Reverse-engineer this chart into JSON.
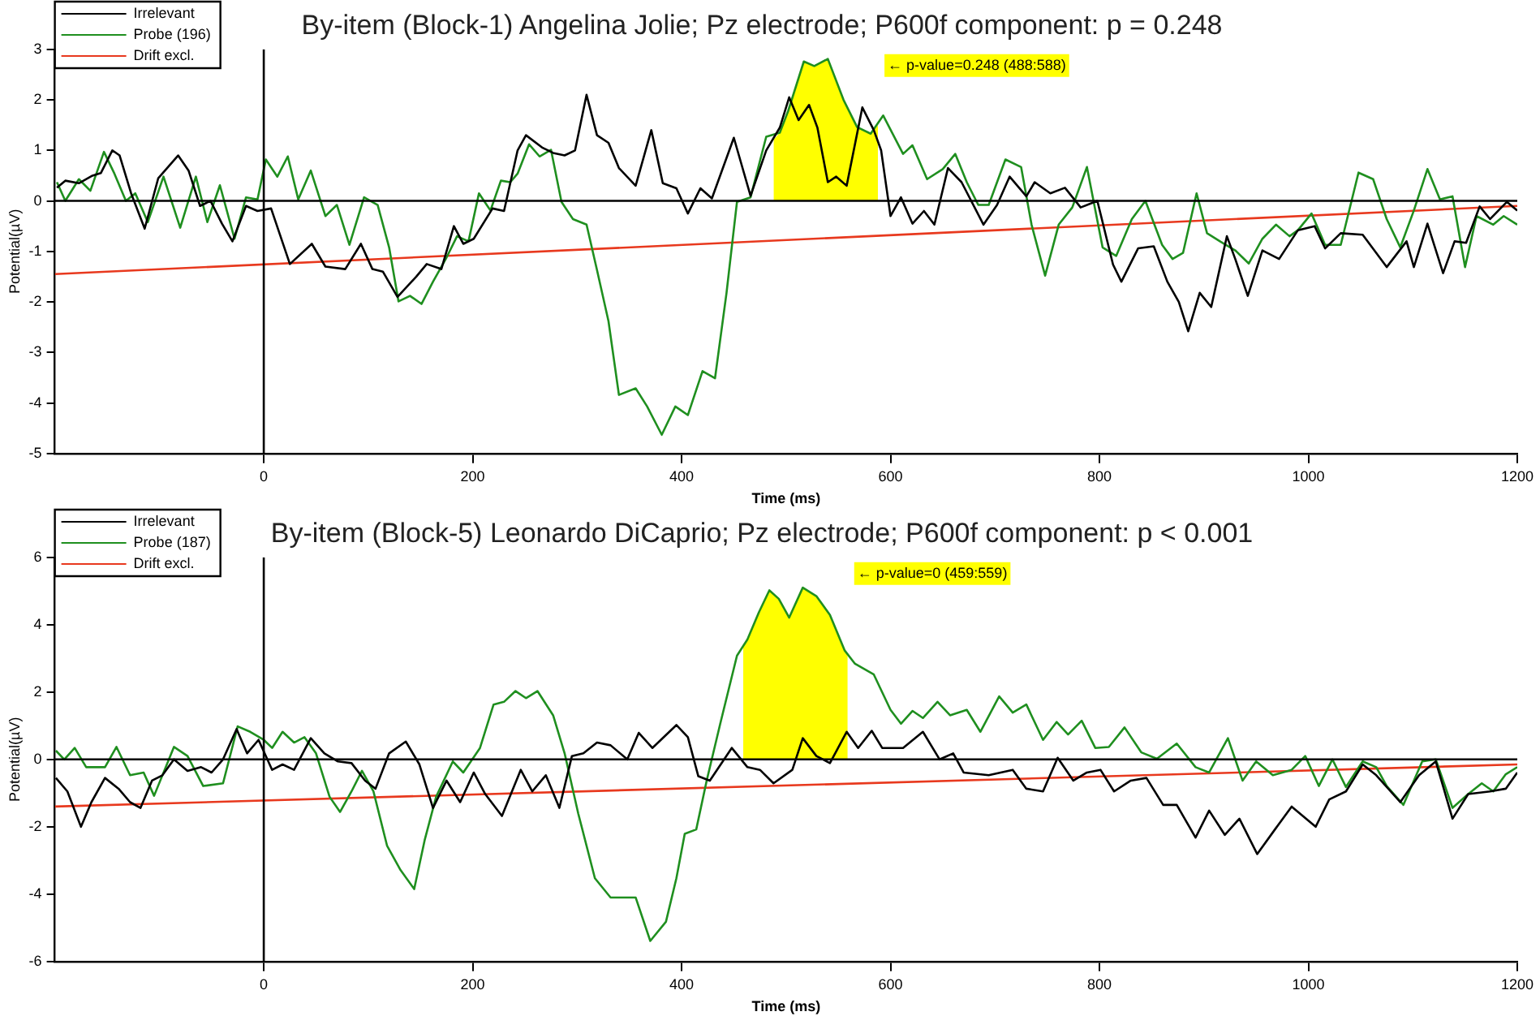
{
  "chart_data": [
    {
      "type": "line",
      "title": "By-item (Block-1) Angelina Jolie; Pz electrode; P600f component: p = 0.248",
      "xlabel": "Time (ms)",
      "ylabel": "Potential(µV)",
      "xlim": [
        -200,
        1200
      ],
      "xticks": [
        0,
        200,
        400,
        600,
        800,
        1000,
        1200
      ],
      "ylim": [
        -5,
        3
      ],
      "yticks": [
        -5,
        -4,
        -3,
        -2,
        -1,
        0,
        1,
        2,
        3
      ],
      "grid": false,
      "legend": "top left",
      "annotations": [
        "← p-value=0.248 (488:588)"
      ],
      "series": [
        {
          "color": "#000000",
          "x": [
            -200,
            1200
          ],
          "values": [
            0,
            0
          ]
        },
        {
          "color": "#000000",
          "x": [
            0,
            0
          ],
          "values": [
            -5,
            3
          ]
        },
        {
          "type": "area",
          "color": "#ffff00",
          "x": [
            488,
            494,
            502,
            517,
            527,
            540,
            555,
            568,
            581,
            588
          ],
          "values": [
            1.21,
            1.35,
            1.78,
            2.76,
            2.67,
            2.81,
            2,
            1.46,
            1.33,
            1.5
          ]
        },
        {
          "name": "Irrelevant",
          "color": "#000000",
          "x": [
            -198,
            -190,
            -177,
            -164,
            -156,
            -145,
            -138,
            -127,
            -114,
            -101,
            -82,
            -72,
            -61,
            -51,
            -40,
            -30,
            -17,
            -6,
            7,
            25,
            46,
            59,
            78,
            93,
            104,
            114,
            128,
            146,
            156,
            170,
            182,
            191,
            201,
            219,
            230,
            243,
            251,
            267,
            277,
            288,
            298,
            309,
            319,
            330,
            340,
            356,
            371,
            382,
            395,
            406,
            418,
            429,
            450,
            466,
            481,
            494,
            503,
            512,
            522,
            530,
            540,
            548,
            558,
            573,
            584,
            591,
            600,
            610,
            621,
            632,
            642,
            655,
            668,
            689,
            702,
            714,
            730,
            738,
            753,
            767,
            782,
            798,
            813,
            821,
            837,
            852,
            865,
            876,
            885,
            896,
            907,
            922,
            930,
            942,
            956,
            972,
            990,
            1006,
            1016,
            1031,
            1052,
            1075,
            1094,
            1101,
            1114,
            1129,
            1140,
            1151,
            1164,
            1174,
            1190,
            1200
          ],
          "values": [
            0.26,
            0.4,
            0.35,
            0.5,
            0.55,
            1,
            0.9,
            0.15,
            -0.55,
            0.45,
            0.9,
            0.6,
            -0.1,
            0,
            -0.45,
            -0.8,
            -0.1,
            -0.2,
            -0.15,
            -1.25,
            -0.85,
            -1.3,
            -1.35,
            -0.85,
            -1.35,
            -1.4,
            -1.9,
            -1.5,
            -1.25,
            -1.35,
            -0.5,
            -0.85,
            -0.75,
            -0.15,
            -0.2,
            1,
            1.3,
            1.05,
            0.95,
            0.9,
            1,
            2.1,
            1.3,
            1.15,
            0.65,
            0.3,
            1.4,
            0.35,
            0.25,
            -0.25,
            0.25,
            0.05,
            1.25,
            0.1,
            1,
            1.45,
            2.05,
            1.6,
            1.9,
            1.45,
            0.37,
            0.48,
            0.3,
            1.85,
            1.4,
            1,
            -0.3,
            0.07,
            -0.45,
            -0.2,
            -0.47,
            0.65,
            0.37,
            -0.47,
            -0.08,
            0.48,
            0.09,
            0.37,
            0.15,
            0.26,
            -0.13,
            0,
            -1.26,
            -1.6,
            -0.94,
            -0.9,
            -1.6,
            -2,
            -2.58,
            -1.82,
            -2.1,
            -0.7,
            -1.15,
            -1.88,
            -0.98,
            -1.15,
            -0.58,
            -0.5,
            -0.94,
            -0.64,
            -0.67,
            -1.31,
            -0.8,
            -1.31,
            -0.45,
            -1.43,
            -0.8,
            -0.83,
            -0.11,
            -0.36,
            -0.02,
            -0.19
          ]
        },
        {
          "name": "Probe (196)",
          "color": "#1f8f1f",
          "x": [
            -198,
            -190,
            -177,
            -166,
            -153,
            -143,
            -132,
            -123,
            -111,
            -96,
            -80,
            -65,
            -54,
            -42,
            -28,
            -17,
            -6,
            2,
            13,
            23,
            33,
            45,
            59,
            70,
            82,
            96,
            109,
            120,
            129,
            140,
            151,
            162,
            175,
            185,
            196,
            206,
            217,
            227,
            236,
            243,
            254,
            264,
            275,
            285,
            296,
            309,
            319,
            330,
            340,
            356,
            367,
            381,
            394,
            406,
            420,
            432,
            443,
            453,
            466,
            481,
            494,
            502,
            517,
            527,
            540,
            555,
            568,
            581,
            593,
            612,
            621,
            635,
            650,
            662,
            673,
            684,
            694,
            710,
            725,
            735,
            748,
            761,
            774,
            788,
            803,
            816,
            831,
            844,
            860,
            870,
            880,
            893,
            903,
            916,
            930,
            943,
            956,
            969,
            982,
            990,
            1003,
            1016,
            1031,
            1048,
            1062,
            1075,
            1088,
            1101,
            1114,
            1126,
            1138,
            1150,
            1161,
            1177,
            1187,
            1200
          ],
          "values": [
            0.37,
            0,
            0.43,
            0.2,
            0.97,
            0.54,
            0,
            0.15,
            -0.42,
            0.48,
            -0.53,
            0.48,
            -0.42,
            0.31,
            -0.75,
            0.07,
            0.03,
            0.82,
            0.48,
            0.88,
            0.03,
            0.6,
            -0.3,
            -0.08,
            -0.87,
            0.07,
            -0.08,
            -0.92,
            -1.99,
            -1.88,
            -2.04,
            -1.6,
            -1.12,
            -0.7,
            -0.8,
            0.15,
            -0.19,
            0.4,
            0.37,
            0.54,
            1.12,
            0.88,
            1.01,
            -0.02,
            -0.36,
            -0.47,
            -1.37,
            -2.38,
            -3.84,
            -3.71,
            -4.07,
            -4.63,
            -4.07,
            -4.24,
            -3.37,
            -3.51,
            -1.82,
            -0.02,
            0.07,
            1.27,
            1.35,
            1.78,
            2.76,
            2.67,
            2.81,
            2,
            1.46,
            1.33,
            1.69,
            0.93,
            1.1,
            0.43,
            0.63,
            0.93,
            0.37,
            -0.08,
            -0.08,
            0.82,
            0.67,
            -0.47,
            -1.48,
            -0.47,
            -0.13,
            0.67,
            -0.92,
            -1.09,
            -0.36,
            0,
            -0.87,
            -1.15,
            -1.03,
            0.15,
            -0.64,
            -0.81,
            -0.98,
            -1.24,
            -0.75,
            -0.47,
            -0.7,
            -0.58,
            -0.25,
            -0.87,
            -0.87,
            0.56,
            0.43,
            -0.36,
            -0.92,
            -0.19,
            0.63,
            0.03,
            0.09,
            -1.31,
            -0.3,
            -0.47,
            -0.3,
            -0.47
          ]
        },
        {
          "name": "Drift excl.",
          "color": "#e8391e",
          "x": [
            -200,
            1200
          ],
          "values": [
            -1.45,
            -0.1
          ]
        }
      ]
    },
    {
      "type": "line",
      "title": "By-item (Block-5) Leonardo DiCaprio; Pz electrode; P600f component: p < 0.001",
      "xlabel": "Time (ms)",
      "ylabel": "Potential(µV)",
      "xlim": [
        -200,
        1200
      ],
      "xticks": [
        0,
        200,
        400,
        600,
        800,
        1000,
        1200
      ],
      "ylim": [
        -6,
        6
      ],
      "yticks": [
        -6,
        -4,
        -2,
        0,
        2,
        4,
        6
      ],
      "grid": false,
      "legend": "top left",
      "annotations": [
        "← p-value=0 (459:559)"
      ],
      "series": [
        {
          "color": "#000000",
          "x": [
            -200,
            1200
          ],
          "values": [
            0,
            0
          ]
        },
        {
          "color": "#000000",
          "x": [
            0,
            0
          ],
          "values": [
            -6,
            6
          ]
        },
        {
          "type": "area",
          "color": "#ffff00",
          "x": [
            459,
            463,
            474,
            484,
            493,
            503,
            516,
            529,
            542,
            556,
            559
          ],
          "values": [
            3.4,
            3.56,
            4.37,
            5.02,
            4.77,
            4.21,
            5.1,
            4.85,
            4.29,
            3.24,
            3.1
          ]
        },
        {
          "name": "Irrelevant",
          "color": "#000000",
          "x": [
            -199,
            -188,
            -175,
            -165,
            -152,
            -139,
            -128,
            -118,
            -107,
            -97,
            -86,
            -73,
            -60,
            -50,
            -39,
            -26,
            -16,
            -5,
            8,
            18,
            29,
            45,
            58,
            71,
            84,
            97,
            107,
            120,
            136,
            149,
            162,
            175,
            188,
            201,
            212,
            228,
            246,
            257,
            270,
            283,
            295,
            306,
            319,
            332,
            348,
            359,
            372,
            395,
            406,
            416,
            427,
            448,
            463,
            475,
            488,
            506,
            516,
            529,
            542,
            558,
            569,
            582,
            592,
            612,
            631,
            647,
            660,
            670,
            694,
            717,
            730,
            746,
            760,
            775,
            788,
            801,
            814,
            830,
            845,
            861,
            874,
            892,
            905,
            920,
            934,
            951,
            968,
            984,
            1007,
            1020,
            1036,
            1052,
            1065,
            1088,
            1106,
            1122,
            1138,
            1153,
            1174,
            1189,
            1200
          ],
          "values": [
            -0.55,
            -0.95,
            -2,
            -1.27,
            -0.55,
            -0.87,
            -1.27,
            -1.44,
            -0.63,
            -0.47,
            0,
            -0.34,
            -0.23,
            -0.39,
            0,
            0.9,
            0.18,
            0.58,
            -0.31,
            -0.15,
            -0.31,
            0.63,
            0.18,
            -0.06,
            -0.11,
            -0.63,
            -0.87,
            0.18,
            0.53,
            -0.15,
            -1.44,
            -0.63,
            -1.27,
            -0.39,
            -1.03,
            -1.68,
            -0.31,
            -0.95,
            -0.47,
            -1.44,
            0.1,
            0.18,
            0.5,
            0.42,
            0,
            0.79,
            0.34,
            1.02,
            0.66,
            -0.5,
            -0.63,
            0.34,
            -0.23,
            -0.31,
            -0.71,
            -0.31,
            0.63,
            0.1,
            -0.11,
            0.82,
            0.34,
            0.85,
            0.34,
            0.34,
            0.82,
            0,
            0.18,
            -0.39,
            -0.47,
            -0.31,
            -0.87,
            -0.95,
            0.05,
            -0.63,
            -0.39,
            -0.31,
            -0.95,
            -0.63,
            -0.55,
            -1.35,
            -1.35,
            -2.32,
            -1.52,
            -2.24,
            -1.76,
            -2.81,
            -2.08,
            -1.4,
            -2,
            -1.19,
            -0.95,
            -0.15,
            -0.47,
            -1.27,
            -0.47,
            -0.06,
            -1.76,
            -1.03,
            -0.95,
            -0.87,
            -0.39
          ]
        },
        {
          "name": "Probe (187)",
          "color": "#1f8f1f",
          "x": [
            -199,
            -191,
            -181,
            -170,
            -152,
            -141,
            -128,
            -115,
            -105,
            -86,
            -73,
            -58,
            -39,
            -25,
            -13,
            0,
            8,
            18,
            29,
            39,
            50,
            63,
            73,
            84,
            94,
            105,
            118,
            131,
            144,
            154,
            165,
            181,
            191,
            207,
            220,
            230,
            241,
            251,
            262,
            277,
            288,
            301,
            317,
            332,
            356,
            370,
            385,
            395,
            403,
            414,
            424,
            437,
            453,
            463,
            474,
            484,
            493,
            503,
            516,
            529,
            542,
            556,
            566,
            584,
            600,
            610,
            621,
            631,
            645,
            657,
            673,
            686,
            704,
            717,
            730,
            746,
            759,
            770,
            783,
            796,
            809,
            824,
            840,
            855,
            874,
            892,
            905,
            923,
            937,
            950,
            966,
            984,
            997,
            1010,
            1023,
            1036,
            1052,
            1065,
            1075,
            1091,
            1109,
            1122,
            1138,
            1153,
            1166,
            1177,
            1189,
            1200
          ],
          "values": [
            0.26,
            0,
            0.34,
            -0.23,
            -0.23,
            0.37,
            -0.47,
            -0.39,
            -1.08,
            0.37,
            0.1,
            -0.79,
            -0.71,
            0.98,
            0.82,
            0.58,
            0.34,
            0.82,
            0.5,
            0.66,
            0.18,
            -1.11,
            -1.56,
            -0.95,
            -0.34,
            -0.95,
            -2.56,
            -3.29,
            -3.85,
            -2.4,
            -1.11,
            -0.06,
            -0.39,
            0.34,
            1.63,
            1.71,
            2.03,
            1.82,
            2.03,
            1.31,
            0.18,
            -1.6,
            -3.53,
            -4.1,
            -4.1,
            -5.39,
            -4.82,
            -3.53,
            -2.21,
            -2.08,
            -0.63,
            1.06,
            3.08,
            3.56,
            4.37,
            5.02,
            4.77,
            4.21,
            5.1,
            4.85,
            4.29,
            3.24,
            2.84,
            2.52,
            1.47,
            1.06,
            1.44,
            1.23,
            1.71,
            1.31,
            1.47,
            0.82,
            1.87,
            1.39,
            1.63,
            0.58,
            1.11,
            0.74,
            1.15,
            0.34,
            0.37,
            0.95,
            0.21,
            0.02,
            0.47,
            -0.23,
            -0.39,
            0.63,
            -0.63,
            -0.06,
            -0.47,
            -0.31,
            0.1,
            -0.79,
            0,
            -0.82,
            -0.06,
            -0.23,
            -0.79,
            -1.35,
            -0.06,
            0,
            -1.44,
            -1.03,
            -0.71,
            -0.95,
            -0.44,
            -0.23
          ]
        },
        {
          "name": "Drift excl.",
          "color": "#e8391e",
          "x": [
            -200,
            1200
          ],
          "values": [
            -1.4,
            -0.15
          ]
        }
      ]
    }
  ]
}
